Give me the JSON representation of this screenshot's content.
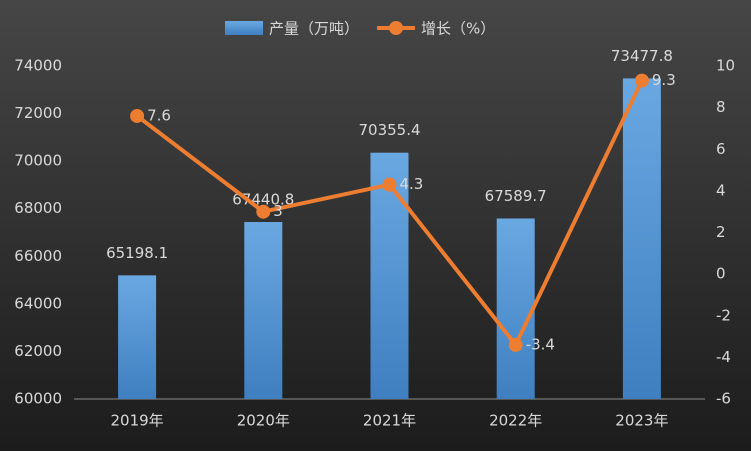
{
  "chart_data": {
    "type": "bar",
    "categories": [
      "2019年",
      "2020年",
      "2021年",
      "2022年",
      "2023年"
    ],
    "series": [
      {
        "name": "产量（万吨）",
        "type": "bar",
        "color": "#5b9bd5",
        "values": [
          65198.1,
          67440.8,
          70355.4,
          67589.7,
          73477.8
        ]
      },
      {
        "name": "增长（%）",
        "type": "line",
        "color": "#ed7d31",
        "axis": "y2",
        "values": [
          7.6,
          3,
          4.3,
          -3.4,
          9.3
        ]
      }
    ],
    "ylim": [
      60000,
      74000
    ],
    "yticks": [
      60000,
      62000,
      64000,
      66000,
      68000,
      70000,
      72000,
      74000
    ],
    "y2lim": [
      -6,
      10
    ],
    "y2ticks": [
      -6,
      -4,
      -2,
      0,
      2,
      4,
      6,
      8,
      10
    ],
    "legend": "top"
  }
}
